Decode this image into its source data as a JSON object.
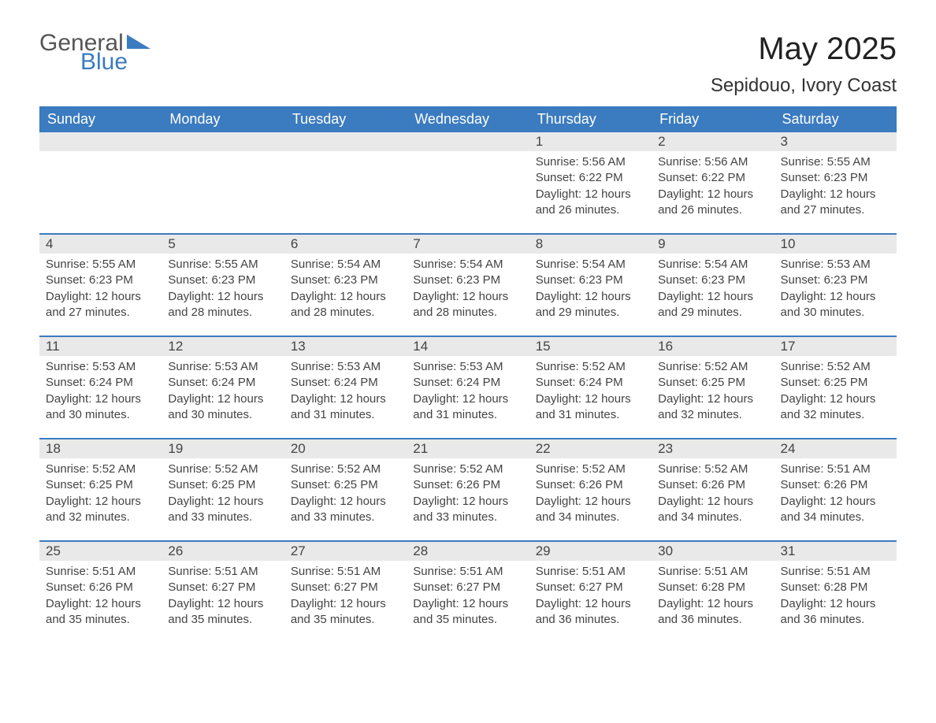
{
  "logo": {
    "text1": "General",
    "text2": "Blue",
    "tri_color": "#3b7bbf"
  },
  "title": "May 2025",
  "location": "Sepidouo, Ivory Coast",
  "colors": {
    "header_bg": "#3b7bbf",
    "header_text": "#ffffff",
    "daynum_bg": "#e9e9e9",
    "body_text": "#444444",
    "week_border": "#3b7bbf"
  },
  "day_headers": [
    "Sunday",
    "Monday",
    "Tuesday",
    "Wednesday",
    "Thursday",
    "Friday",
    "Saturday"
  ],
  "weeks": [
    [
      null,
      null,
      null,
      null,
      {
        "n": "1",
        "sunrise": "5:56 AM",
        "sunset": "6:22 PM",
        "daylight": "12 hours and 26 minutes."
      },
      {
        "n": "2",
        "sunrise": "5:56 AM",
        "sunset": "6:22 PM",
        "daylight": "12 hours and 26 minutes."
      },
      {
        "n": "3",
        "sunrise": "5:55 AM",
        "sunset": "6:23 PM",
        "daylight": "12 hours and 27 minutes."
      }
    ],
    [
      {
        "n": "4",
        "sunrise": "5:55 AM",
        "sunset": "6:23 PM",
        "daylight": "12 hours and 27 minutes."
      },
      {
        "n": "5",
        "sunrise": "5:55 AM",
        "sunset": "6:23 PM",
        "daylight": "12 hours and 28 minutes."
      },
      {
        "n": "6",
        "sunrise": "5:54 AM",
        "sunset": "6:23 PM",
        "daylight": "12 hours and 28 minutes."
      },
      {
        "n": "7",
        "sunrise": "5:54 AM",
        "sunset": "6:23 PM",
        "daylight": "12 hours and 28 minutes."
      },
      {
        "n": "8",
        "sunrise": "5:54 AM",
        "sunset": "6:23 PM",
        "daylight": "12 hours and 29 minutes."
      },
      {
        "n": "9",
        "sunrise": "5:54 AM",
        "sunset": "6:23 PM",
        "daylight": "12 hours and 29 minutes."
      },
      {
        "n": "10",
        "sunrise": "5:53 AM",
        "sunset": "6:23 PM",
        "daylight": "12 hours and 30 minutes."
      }
    ],
    [
      {
        "n": "11",
        "sunrise": "5:53 AM",
        "sunset": "6:24 PM",
        "daylight": "12 hours and 30 minutes."
      },
      {
        "n": "12",
        "sunrise": "5:53 AM",
        "sunset": "6:24 PM",
        "daylight": "12 hours and 30 minutes."
      },
      {
        "n": "13",
        "sunrise": "5:53 AM",
        "sunset": "6:24 PM",
        "daylight": "12 hours and 31 minutes."
      },
      {
        "n": "14",
        "sunrise": "5:53 AM",
        "sunset": "6:24 PM",
        "daylight": "12 hours and 31 minutes."
      },
      {
        "n": "15",
        "sunrise": "5:52 AM",
        "sunset": "6:24 PM",
        "daylight": "12 hours and 31 minutes."
      },
      {
        "n": "16",
        "sunrise": "5:52 AM",
        "sunset": "6:25 PM",
        "daylight": "12 hours and 32 minutes."
      },
      {
        "n": "17",
        "sunrise": "5:52 AM",
        "sunset": "6:25 PM",
        "daylight": "12 hours and 32 minutes."
      }
    ],
    [
      {
        "n": "18",
        "sunrise": "5:52 AM",
        "sunset": "6:25 PM",
        "daylight": "12 hours and 32 minutes."
      },
      {
        "n": "19",
        "sunrise": "5:52 AM",
        "sunset": "6:25 PM",
        "daylight": "12 hours and 33 minutes."
      },
      {
        "n": "20",
        "sunrise": "5:52 AM",
        "sunset": "6:25 PM",
        "daylight": "12 hours and 33 minutes."
      },
      {
        "n": "21",
        "sunrise": "5:52 AM",
        "sunset": "6:26 PM",
        "daylight": "12 hours and 33 minutes."
      },
      {
        "n": "22",
        "sunrise": "5:52 AM",
        "sunset": "6:26 PM",
        "daylight": "12 hours and 34 minutes."
      },
      {
        "n": "23",
        "sunrise": "5:52 AM",
        "sunset": "6:26 PM",
        "daylight": "12 hours and 34 minutes."
      },
      {
        "n": "24",
        "sunrise": "5:51 AM",
        "sunset": "6:26 PM",
        "daylight": "12 hours and 34 minutes."
      }
    ],
    [
      {
        "n": "25",
        "sunrise": "5:51 AM",
        "sunset": "6:26 PM",
        "daylight": "12 hours and 35 minutes."
      },
      {
        "n": "26",
        "sunrise": "5:51 AM",
        "sunset": "6:27 PM",
        "daylight": "12 hours and 35 minutes."
      },
      {
        "n": "27",
        "sunrise": "5:51 AM",
        "sunset": "6:27 PM",
        "daylight": "12 hours and 35 minutes."
      },
      {
        "n": "28",
        "sunrise": "5:51 AM",
        "sunset": "6:27 PM",
        "daylight": "12 hours and 35 minutes."
      },
      {
        "n": "29",
        "sunrise": "5:51 AM",
        "sunset": "6:27 PM",
        "daylight": "12 hours and 36 minutes."
      },
      {
        "n": "30",
        "sunrise": "5:51 AM",
        "sunset": "6:28 PM",
        "daylight": "12 hours and 36 minutes."
      },
      {
        "n": "31",
        "sunrise": "5:51 AM",
        "sunset": "6:28 PM",
        "daylight": "12 hours and 36 minutes."
      }
    ]
  ],
  "labels": {
    "sunrise": "Sunrise:",
    "sunset": "Sunset:",
    "daylight": "Daylight:"
  }
}
